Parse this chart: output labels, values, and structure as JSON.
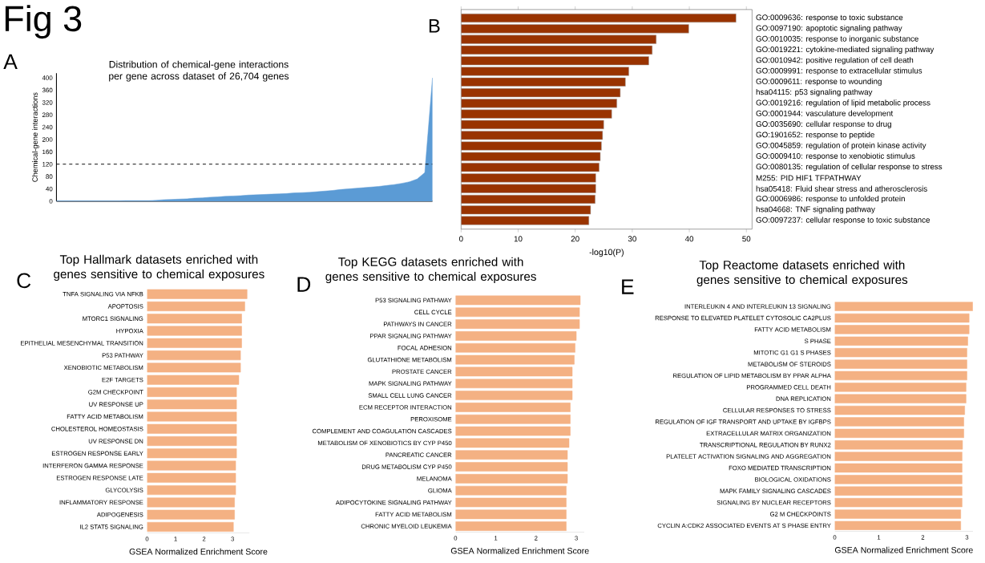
{
  "chart_data": [
    {
      "type": "area",
      "title": "Distribution of chemical-gene interactions per gene across dataset of 26,704 genes",
      "ylabel": "Chemical-gene interactions",
      "annotations": [
        "Fig 3",
        "A"
      ],
      "tick_labels": "y",
      "color": "#5b9bd5",
      "categories": [
        null,
        null,
        null,
        null,
        null,
        null,
        null,
        null,
        null,
        null,
        null,
        null,
        null,
        null,
        null,
        null,
        null,
        null,
        null,
        null,
        null,
        null,
        null,
        null,
        null,
        null,
        null,
        null,
        null,
        null,
        null,
        null,
        null,
        null,
        null,
        null,
        null,
        null,
        null,
        null,
        null,
        null,
        null,
        null,
        null,
        null,
        null,
        null,
        null,
        null
      ],
      "values": [
        1,
        1,
        1,
        1,
        1,
        1,
        1,
        1,
        1,
        2,
        2,
        2,
        2,
        3,
        5,
        6,
        7,
        8,
        10,
        11,
        13,
        14,
        16,
        17,
        18,
        20,
        21,
        22,
        23,
        24,
        25,
        27,
        28,
        29,
        31,
        33,
        35,
        38,
        40,
        42,
        44,
        46,
        48,
        51,
        54,
        58,
        63,
        72,
        93,
        400
      ],
      "ylim": [
        0,
        415
      ],
      "yticks": [
        0,
        40,
        80,
        120,
        160,
        200,
        240,
        280,
        320,
        360,
        400
      ],
      "ref_lines": [
        {
          "axis": "y",
          "value": 120,
          "color": "#000000",
          "line_style": "dashed"
        }
      ]
    },
    {
      "type": "bar",
      "orientation": "horizontal",
      "xlabel": "-log10(P)",
      "annotations": [
        "B"
      ],
      "color": "#993300",
      "categories": [
        "GO:0009636: response to toxic substance",
        "GO:0097190: apoptotic signaling pathway",
        "GO:0010035: response to inorganic substance",
        "GO:0019221: cytokine-mediated signaling pathway",
        "GO:0010942: positive regulation of cell death",
        "GO:0009991: response to extracellular stimulus",
        "GO:0009611: response to wounding",
        "hsa04115: p53 signaling pathway",
        "GO:0019216: regulation of lipid metabolic process",
        "GO:0001944: vasculature development",
        "GO:0035690: cellular response to drug",
        "GO:1901652: response to peptide",
        "GO:0045859: regulation of protein kinase activity",
        "GO:0009410: response to xenobiotic stimulus",
        "GO:0080135: regulation of cellular response to stress",
        "M255: PID HIF1 TFPATHWAY",
        "hsa05418: Fluid shear stress and atherosclerosis",
        "GO:0006986: response to unfolded protein",
        "hsa04668: TNF signaling pathway",
        "GO:0097237: cellular response to toxic substance"
      ],
      "values": [
        48.2,
        39.9,
        34.2,
        33.5,
        32.9,
        29.4,
        28.8,
        27.9,
        27.3,
        26.4,
        25.0,
        24.8,
        24.6,
        24.4,
        24.2,
        23.6,
        23.6,
        23.5,
        22.7,
        22.4
      ],
      "xlim": [
        0,
        51
      ],
      "xticks": [
        0,
        10,
        20,
        30,
        40,
        50
      ]
    },
    {
      "type": "bar",
      "orientation": "horizontal",
      "title": "Top Hallmark datasets enriched with genes sensitive to chemical exposures",
      "xlabel": "GSEA Normalized Enrichment Score",
      "annotations": [
        "C"
      ],
      "color": "#f4b183",
      "categories": [
        "TNFA SIGNALING VIA NFKB",
        "APOPTOSIS",
        "MTORC1 SIGNALING",
        "HYPOXIA",
        "EPITHELIAL MESENCHYMAL TRANSITION",
        "P53 PATHWAY",
        "XENOBIOTIC METABOLISM",
        "E2F TARGETS",
        "G2M CHECKPOINT",
        "UV RESPONSE UP",
        "FATTY ACID METABOLISM",
        "CHOLESTEROL HOMEOSTASIS",
        "UV RESPONSE DN",
        "ESTROGEN RESPONSE EARLY",
        "INTERFERON GAMMA RESPONSE",
        "ESTROGEN RESPONSE LATE",
        "GLYCOLYSIS",
        "INFLAMMATORY RESPONSE",
        "ADIPOGENESIS",
        "IL2 STAT5 SIGNALING"
      ],
      "values": [
        3.51,
        3.43,
        3.32,
        3.32,
        3.32,
        3.28,
        3.28,
        3.22,
        3.14,
        3.14,
        3.14,
        3.14,
        3.14,
        3.14,
        3.11,
        3.11,
        3.11,
        3.07,
        3.07,
        3.03
      ],
      "xlim": [
        0,
        3.6
      ],
      "xticks": [
        0,
        1,
        2,
        3
      ]
    },
    {
      "type": "bar",
      "orientation": "horizontal",
      "title": "Top KEGG datasets enriched with genes sensitive to chemical exposures",
      "xlabel": "GSEA Normalized Enrichment Score",
      "annotations": [
        "D"
      ],
      "color": "#f4b183",
      "categories": [
        "P53 SIGNALING PATHWAY",
        "CELL CYCLE",
        "PATHWAYS IN CANCER",
        "PPAR SIGNALING PATHWAY",
        "FOCAL ADHESION",
        "GLUTATHIONE METABOLISM",
        "PROSTATE CANCER",
        "MAPK SIGNALING PATHWAY",
        "SMALL CELL LUNG CANCER",
        "ECM RECEPTOR INTERACTION",
        "PEROXISOME",
        "COMPLEMENT AND COAGULATION CASCADES",
        "METABOLISM OF XENOBIOTICS BY CYP P450",
        "PANCREATIC CANCER",
        "DRUG METABOLISM CYP P450",
        "MELANOMA",
        "GLIOMA",
        "ADIPOCYTOKINE SIGNALING PATHWAY",
        "FATTY ACID METABOLISM",
        "CHRONIC MYELOID LEUKEMIA"
      ],
      "values": [
        3.1,
        3.08,
        3.08,
        3.0,
        2.97,
        2.95,
        2.9,
        2.9,
        2.9,
        2.85,
        2.85,
        2.85,
        2.82,
        2.78,
        2.78,
        2.78,
        2.75,
        2.75,
        2.75,
        2.75
      ],
      "xlim": [
        0,
        3.2
      ],
      "xticks": [
        0,
        1,
        2,
        3
      ]
    },
    {
      "type": "bar",
      "orientation": "horizontal",
      "title": "Top Reactome datasets enriched with genes sensitive to chemical exposures",
      "xlabel": "GSEA Normalized Enrichment Score",
      "annotations": [
        "E"
      ],
      "color": "#f4b183",
      "categories": [
        "INTERLEUKIN 4 AND INTERLEUKIN 13 SIGNALING",
        "RESPONSE TO ELEVATED PLATELET CYTOSOLIC CA2PLUS",
        "FATTY ACID METABOLISM",
        "S PHASE",
        "MITOTIC G1 G1 S PHASES",
        "METABOLISM OF STEROIDS",
        "REGULATION OF LIPID METABOLISM BY PPAR ALPHA",
        "PROGRAMMED CELL DEATH",
        "DNA REPLICATION",
        "CELLULAR RESPONSES TO STRESS",
        "REGULATION OF IGF TRANSPORT AND UPTAKE BY IGFBPS",
        "EXTRACELLULAR MATRIX ORGANIZATION",
        "TRANSCRIPTIONAL REGULATION BY RUNX2",
        "PLATELET ACTIVATION SIGNALING AND AGGREGATION",
        "FOXO MEDIATED TRANSCRIPTION",
        "BIOLOGICAL OXIDATIONS",
        "MAPK FAMILY SIGNALING CASCADES",
        "SIGNALING BY NUCLEAR RECEPTORS",
        "G2 M CHECKPOINTS",
        "CYCLIN A:CDK2 ASSOCIATED EVENTS AT S PHASE ENTRY"
      ],
      "values": [
        3.13,
        3.05,
        3.05,
        3.02,
        3.0,
        3.0,
        3.0,
        2.98,
        2.98,
        2.95,
        2.93,
        2.93,
        2.9,
        2.89,
        2.89,
        2.89,
        2.89,
        2.89,
        2.86,
        2.86
      ],
      "xlim": [
        0,
        3.14
      ],
      "xticks": [
        0,
        1,
        2,
        3
      ]
    }
  ]
}
